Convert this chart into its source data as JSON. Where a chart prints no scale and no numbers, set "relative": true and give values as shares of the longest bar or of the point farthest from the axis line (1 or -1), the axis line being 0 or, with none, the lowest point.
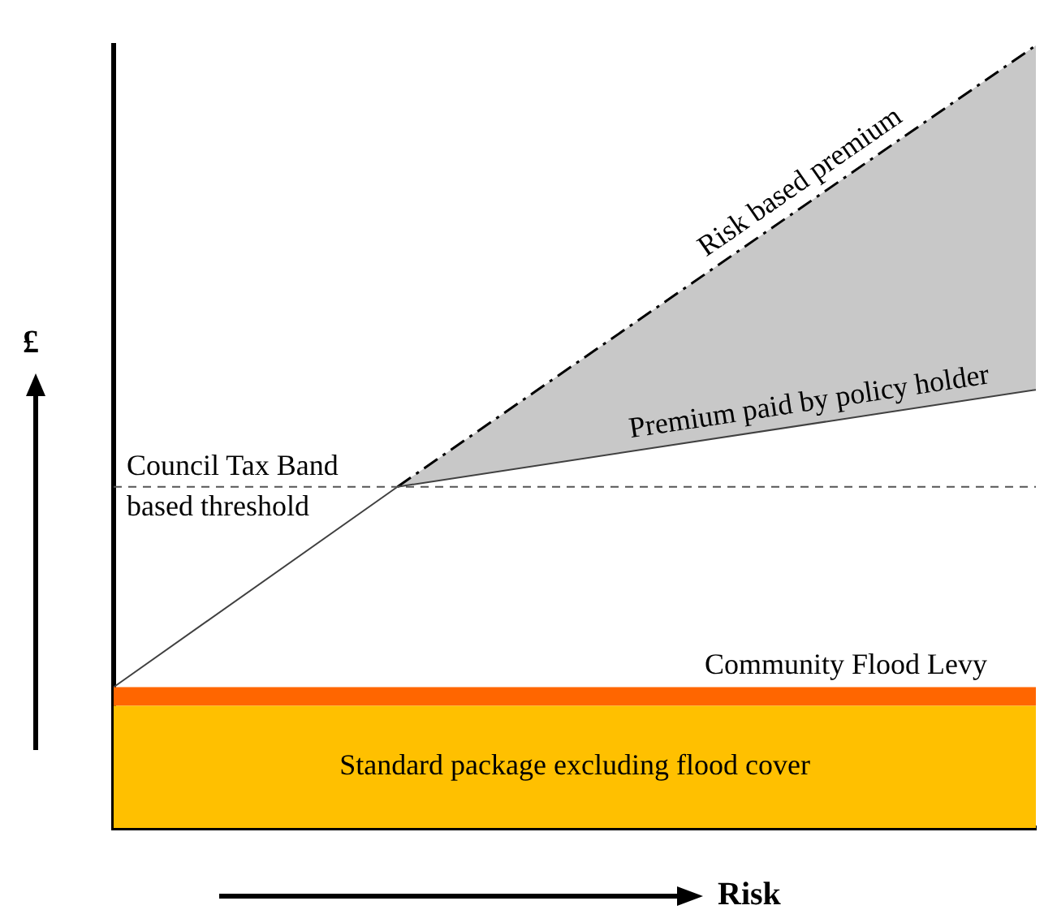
{
  "chart_data": {
    "type": "line",
    "relative": true,
    "xlabel": "Risk",
    "ylabel": "£",
    "categories": [
      null,
      null,
      null,
      null,
      null,
      null,
      null,
      null,
      null,
      null,
      null,
      null,
      null,
      null
    ],
    "series": [
      {
        "name": "Standard package excluding flood cover",
        "type": "area",
        "color": "#ffc000",
        "values": [
          0.156,
          0.156,
          0.156,
          0.156,
          0.156,
          0.156,
          0.156,
          0.156,
          0.156,
          0.156,
          0.156,
          0.156,
          0.156,
          0.156
        ]
      },
      {
        "name": "Community Flood Levy",
        "type": "area",
        "color": "#ff6600",
        "values": [
          0.18,
          0.18,
          0.18,
          0.18,
          0.18,
          0.18,
          0.18,
          0.18,
          0.18,
          0.18,
          0.18,
          0.18,
          0.18,
          0.18
        ]
      },
      {
        "name": "Premium paid by policy holder",
        "type": "line",
        "color": "#404040",
        "values": [
          0.18,
          null,
          null,
          null,
          0.436,
          null,
          null,
          null,
          null,
          null,
          null,
          null,
          null,
          0.56
        ]
      },
      {
        "name": "Risk based premium",
        "type": "area",
        "color": "#c8c8c8",
        "line_style": "dashed",
        "values": [
          null,
          null,
          null,
          null,
          0.436,
          null,
          null,
          null,
          null,
          null,
          null,
          null,
          null,
          1
        ]
      }
    ],
    "ref_lines": [
      {
        "axis": "y",
        "value": 0.436,
        "label": "Council Tax Band based threshold",
        "color": "#555555",
        "line_style": "dashed"
      }
    ],
    "marker": "none"
  }
}
